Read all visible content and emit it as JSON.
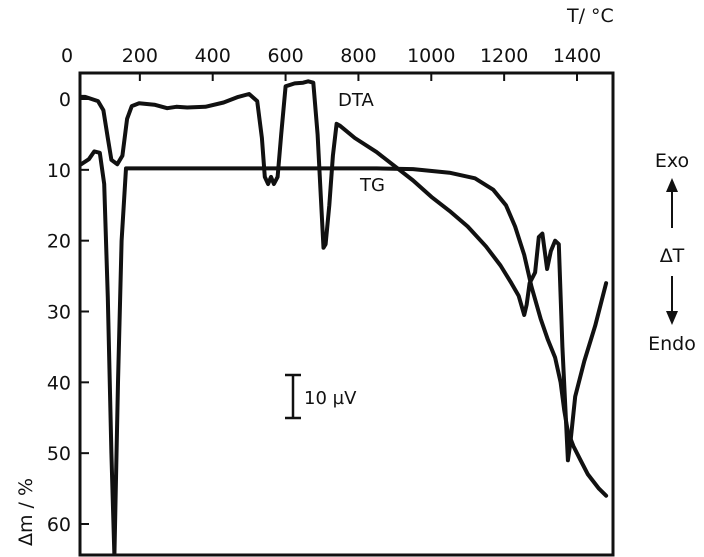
{
  "chart_data": {
    "type": "line",
    "x_axis": {
      "title": "T/ °C",
      "position": "top",
      "ticks": [
        0,
        200,
        400,
        600,
        800,
        1000,
        1200,
        1400
      ],
      "range": [
        0,
        1480
      ]
    },
    "y_axis": {
      "title": "Δm / %",
      "position": "left",
      "ticks": [
        0,
        10,
        20,
        30,
        40,
        50,
        60
      ],
      "range": [
        -4,
        64
      ],
      "inverted": true
    },
    "series": [
      {
        "name": "DTA",
        "color": "#111111",
        "points": [
          [
            -20,
            -0.3
          ],
          [
            50,
            -0.3
          ],
          [
            85,
            0.3
          ],
          [
            100,
            1.6
          ],
          [
            112,
            5.5
          ],
          [
            122,
            8.6
          ],
          [
            138,
            9.2
          ],
          [
            152,
            8
          ],
          [
            165,
            2.8
          ],
          [
            178,
            1
          ],
          [
            198,
            0.6
          ],
          [
            240,
            0.8
          ],
          [
            275,
            1.3
          ],
          [
            300,
            1.1
          ],
          [
            330,
            1.2
          ],
          [
            380,
            1.1
          ],
          [
            430,
            0.5
          ],
          [
            470,
            -0.3
          ],
          [
            500,
            -0.7
          ],
          [
            522,
            0.3
          ],
          [
            535,
            5.5
          ],
          [
            543,
            11
          ],
          [
            552,
            12
          ],
          [
            560,
            11
          ],
          [
            568,
            12
          ],
          [
            578,
            11
          ],
          [
            588,
            5
          ],
          [
            600,
            -1.8
          ],
          [
            625,
            -2.2
          ],
          [
            648,
            -2.3
          ],
          [
            662,
            -2.5
          ],
          [
            676,
            -2.3
          ],
          [
            688,
            5
          ],
          [
            697,
            14
          ],
          [
            704,
            21
          ],
          [
            710,
            20.5
          ],
          [
            720,
            15
          ],
          [
            730,
            8
          ],
          [
            740,
            3.5
          ],
          [
            750,
            3.8
          ],
          [
            790,
            5.5
          ],
          [
            850,
            7.5
          ],
          [
            900,
            9.5
          ],
          [
            950,
            11.5
          ],
          [
            1000,
            13.8
          ],
          [
            1050,
            15.8
          ],
          [
            1100,
            18
          ],
          [
            1150,
            20.8
          ],
          [
            1190,
            23.5
          ],
          [
            1220,
            26
          ],
          [
            1240,
            27.8
          ],
          [
            1255,
            30.5
          ],
          [
            1262,
            29
          ],
          [
            1270,
            26
          ],
          [
            1285,
            24.5
          ],
          [
            1295,
            19.5
          ],
          [
            1305,
            19
          ],
          [
            1318,
            24
          ],
          [
            1328,
            21.5
          ],
          [
            1340,
            20
          ],
          [
            1350,
            20.5
          ],
          [
            1360,
            35
          ],
          [
            1375,
            51
          ],
          [
            1382,
            48.5
          ],
          [
            1395,
            42
          ],
          [
            1420,
            37
          ],
          [
            1450,
            32
          ],
          [
            1480,
            26
          ]
        ]
      },
      {
        "name": "TG",
        "color": "#111111",
        "points": [
          [
            -20,
            9.8
          ],
          [
            30,
            9.5
          ],
          [
            60,
            8.5
          ],
          [
            75,
            7.4
          ],
          [
            90,
            7.6
          ],
          [
            102,
            12
          ],
          [
            112,
            28
          ],
          [
            122,
            50
          ],
          [
            130,
            64.5
          ],
          [
            140,
            40
          ],
          [
            150,
            20
          ],
          [
            162,
            9.8
          ],
          [
            180,
            9.8
          ],
          [
            300,
            9.8
          ],
          [
            500,
            9.8
          ],
          [
            700,
            9.8
          ],
          [
            850,
            9.8
          ],
          [
            950,
            9.9
          ],
          [
            1050,
            10.4
          ],
          [
            1120,
            11.2
          ],
          [
            1170,
            12.8
          ],
          [
            1205,
            15
          ],
          [
            1230,
            18
          ],
          [
            1255,
            22
          ],
          [
            1275,
            26.5
          ],
          [
            1300,
            31
          ],
          [
            1320,
            34
          ],
          [
            1340,
            36.5
          ],
          [
            1355,
            40
          ],
          [
            1365,
            44
          ],
          [
            1375,
            47
          ],
          [
            1390,
            49
          ],
          [
            1410,
            51
          ],
          [
            1430,
            53
          ],
          [
            1460,
            55
          ],
          [
            1480,
            56
          ]
        ]
      }
    ],
    "annotations": {
      "dta_label": "DTA",
      "tg_label": "TG",
      "scale_bar": "10 µV",
      "exo": "Exo",
      "delta_t": "ΔT",
      "endo": "Endo"
    }
  }
}
